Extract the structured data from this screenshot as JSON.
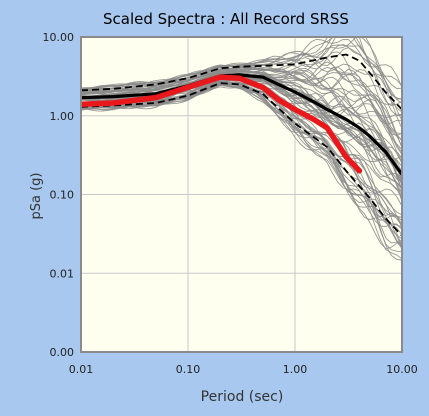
{
  "chart_data": {
    "type": "line",
    "title": "Scaled Spectra : All Record SRSS",
    "xlabel": "Period (sec)",
    "ylabel": "pSa (g)",
    "x_scale": "log",
    "y_scale": "log",
    "xlim": [
      0.01,
      10
    ],
    "ylim": [
      0.001,
      10
    ],
    "x_ticks": [
      0.01,
      0.1,
      1,
      10
    ],
    "x_tick_labels": [
      "0.01",
      "0.10",
      "1.00",
      "10.00"
    ],
    "y_ticks": [
      0.001,
      0.01,
      0.1,
      1,
      10
    ],
    "y_tick_labels": [
      "0.00",
      "0.01",
      "0.10",
      "1.00",
      "10.00"
    ],
    "grid": true,
    "legend": "none",
    "colors": {
      "plot_background": "#fffff0",
      "page_background": "#a9c8ef",
      "records": "#8c8c8c",
      "target": "#e8181c",
      "median": "#000000",
      "grid": "#c8c8c8",
      "frame": "#8a8a8a"
    },
    "series": [
      {
        "role": "median",
        "style": "solid",
        "x": [
          0.01,
          0.02,
          0.05,
          0.1,
          0.2,
          0.3,
          0.5,
          0.7,
          1,
          1.5,
          2,
          3,
          4,
          5,
          7,
          10
        ],
        "y": [
          1.7,
          1.75,
          1.9,
          2.4,
          3.2,
          3.3,
          3.1,
          2.5,
          2.0,
          1.5,
          1.2,
          0.9,
          0.7,
          0.55,
          0.35,
          0.18
        ]
      },
      {
        "role": "median-plus-sigma",
        "style": "dashed",
        "x": [
          0.01,
          0.02,
          0.05,
          0.1,
          0.2,
          0.3,
          0.5,
          1,
          2,
          3,
          4,
          5,
          7,
          10
        ],
        "y": [
          2.1,
          2.2,
          2.5,
          3.0,
          4.0,
          4.2,
          4.3,
          4.5,
          5.5,
          6.0,
          5.0,
          3.5,
          2.0,
          1.2
        ]
      },
      {
        "role": "median-minus-sigma",
        "style": "dashed",
        "x": [
          0.01,
          0.02,
          0.05,
          0.1,
          0.2,
          0.3,
          0.5,
          1,
          2,
          3,
          5,
          7,
          10
        ],
        "y": [
          1.3,
          1.35,
          1.45,
          1.8,
          2.6,
          2.5,
          1.9,
          0.8,
          0.4,
          0.2,
          0.09,
          0.05,
          0.03
        ]
      },
      {
        "role": "target",
        "style": "solid-thick",
        "x": [
          0.01,
          0.02,
          0.05,
          0.1,
          0.2,
          0.3,
          0.5,
          0.7,
          1,
          1.5,
          2,
          3,
          4
        ],
        "y": [
          1.4,
          1.45,
          1.7,
          2.3,
          3.1,
          3.0,
          2.3,
          1.6,
          1.2,
          0.9,
          0.7,
          0.3,
          0.2
        ]
      }
    ]
  }
}
